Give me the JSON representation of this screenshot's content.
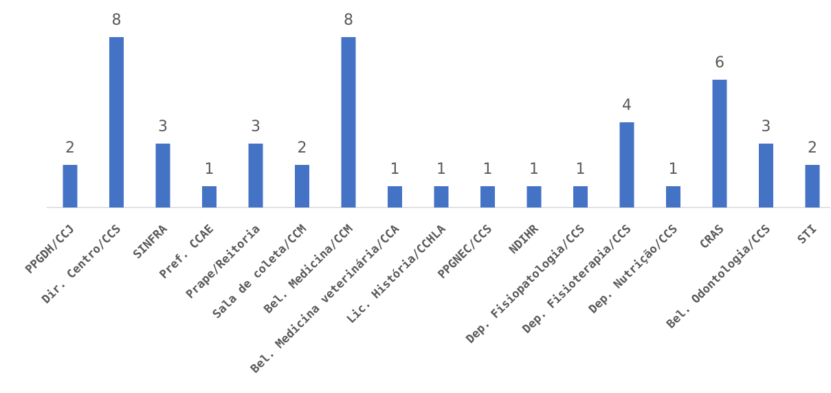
{
  "chart_data": {
    "type": "bar",
    "categories": [
      "PPGDH/CCJ",
      "Dir. Centro/CCS",
      "SINFRA",
      "Pref. CCAE",
      "Prape/Reitoria",
      "Sala de coleta/CCM",
      "Bel. Medicina/CCM",
      "Bel. Medicina veterinária/CCA",
      "Lic. História/CCHLA",
      "PPGNEC/CCS",
      "NDIHR",
      "Dep. Fisiopatologia/CCS",
      "Dep. Fisioterapia/CCS",
      "Dep. Nutrição/CCS",
      "CRAS",
      "Bel. Odontologia/CCS",
      "STI"
    ],
    "values": [
      2,
      8,
      3,
      1,
      3,
      2,
      8,
      1,
      1,
      1,
      1,
      1,
      4,
      1,
      6,
      3,
      2
    ],
    "data_labels": [
      "2",
      "8",
      "3",
      "1",
      "3",
      "2",
      "8",
      "1",
      "1",
      "1",
      "1",
      "1",
      "4",
      "1",
      "6",
      "3",
      "2"
    ],
    "color": "#4472C4",
    "title": "",
    "xlabel": "",
    "ylabel": "",
    "ylim": [
      0,
      8
    ],
    "grid": false,
    "legend": "none"
  }
}
